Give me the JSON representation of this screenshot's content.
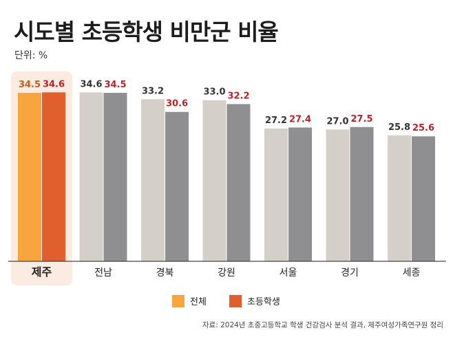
{
  "header": {
    "title": "시도별 초등학생 비만군 비율",
    "unit": "단위: %"
  },
  "source": "자료: 2024년 초중고등학교 학생 건강검사 분석 결과, 제주여성가족연구원 정리",
  "colors": {
    "highlight_overall": "#f9a53f",
    "highlight_elementary": "#e05f2c",
    "other_overall": "#d4cfc8",
    "other_elementary": "#8f8f92",
    "highlight_band": "#fcebe1",
    "label_overall_highlight": "#c0621b",
    "label_elementary": "#b8232a",
    "label_overall_other": "#333333"
  },
  "chart_data": {
    "type": "bar",
    "title": "시도별 초등학생 비만군 비율",
    "ylabel": "단위: %",
    "categories": [
      "제주",
      "전남",
      "경북",
      "강원",
      "서울",
      "경기",
      "세종"
    ],
    "highlight_category": "제주",
    "series": [
      {
        "name": "전체",
        "values": [
          34.5,
          34.6,
          33.2,
          33.0,
          27.2,
          27.0,
          25.8
        ]
      },
      {
        "name": "초등학생",
        "values": [
          34.6,
          34.5,
          30.6,
          32.2,
          27.4,
          27.5,
          25.6
        ]
      }
    ],
    "legend_position": "bottom-center",
    "grid": false
  }
}
